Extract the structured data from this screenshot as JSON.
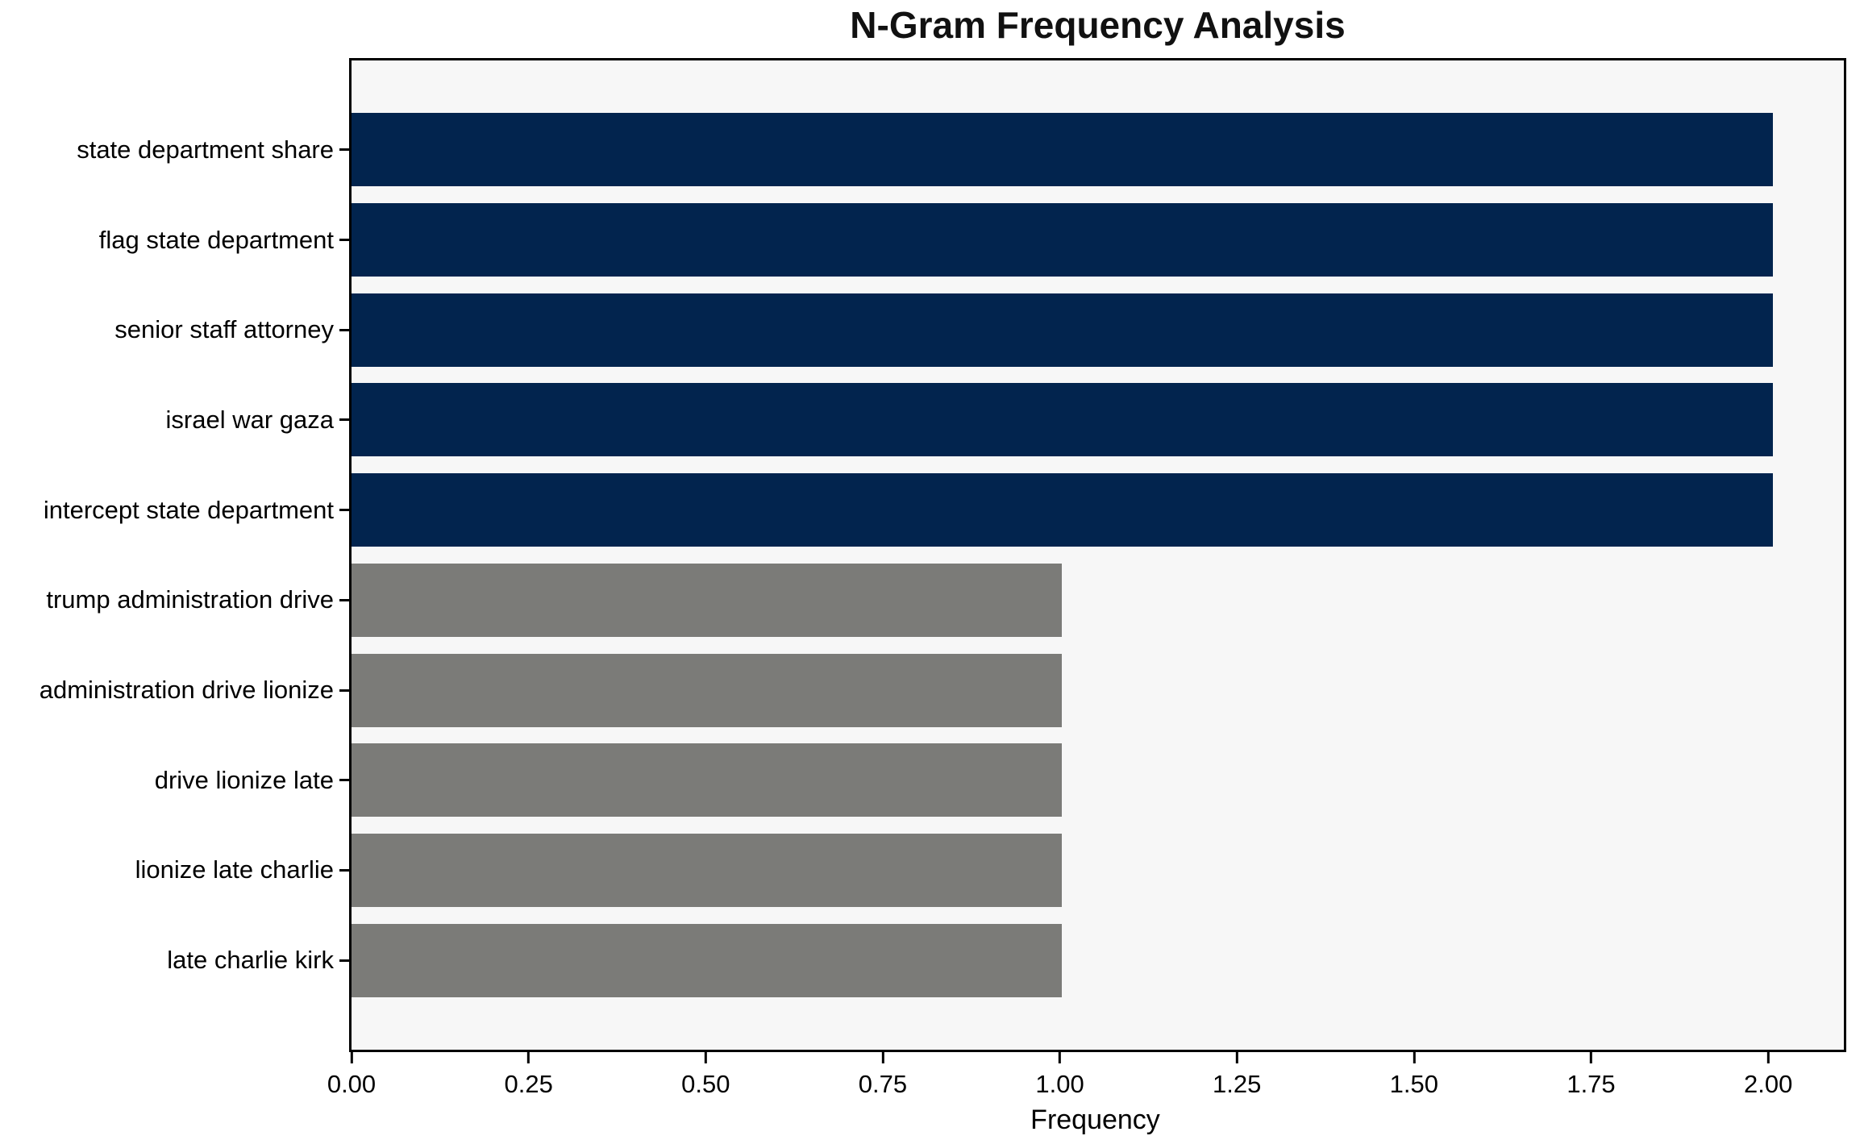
{
  "chart_data": {
    "type": "bar",
    "orientation": "horizontal",
    "title": "N-Gram Frequency Analysis",
    "xlabel": "Frequency",
    "ylabel": "",
    "categories": [
      "state department share",
      "flag state department",
      "senior staff attorney",
      "israel war gaza",
      "intercept state department",
      "trump administration drive",
      "administration drive lionize",
      "drive lionize late",
      "lionize late charlie",
      "late charlie kirk"
    ],
    "values": [
      2,
      2,
      2,
      2,
      2,
      1,
      1,
      1,
      1,
      1
    ],
    "bar_colors": [
      "#02244e",
      "#02244e",
      "#02244e",
      "#02244e",
      "#02244e",
      "#7b7b78",
      "#7b7b78",
      "#7b7b78",
      "#7b7b78",
      "#7b7b78"
    ],
    "xticks": [
      0,
      0.25,
      0.5,
      0.75,
      1,
      1.25,
      1.5,
      1.75,
      2
    ],
    "xtick_labels": [
      "0.00",
      "0.25",
      "0.50",
      "0.75",
      "1.00",
      "1.25",
      "1.50",
      "1.75",
      "2.00"
    ],
    "xlim": [
      0,
      2.1
    ],
    "bar_height_fraction": 0.8,
    "grid": false,
    "legend": "none",
    "plot_background": "#f7f7f7",
    "figure_background": "#ffffff",
    "spine_color": "#000000",
    "accent_navy": "#02244e",
    "accent_gray": "#7b7b78"
  }
}
